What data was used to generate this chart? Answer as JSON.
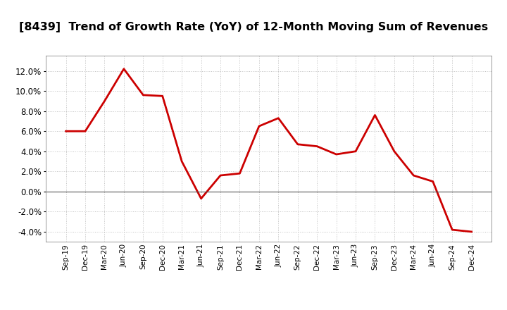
{
  "title": "[8439]  Trend of Growth Rate (YoY) of 12-Month Moving Sum of Revenues",
  "x_labels": [
    "Sep-19",
    "Dec-19",
    "Mar-20",
    "Jun-20",
    "Sep-20",
    "Dec-20",
    "Mar-21",
    "Jun-21",
    "Sep-21",
    "Dec-21",
    "Mar-22",
    "Jun-22",
    "Sep-22",
    "Dec-22",
    "Mar-23",
    "Jun-23",
    "Sep-23",
    "Dec-23",
    "Mar-24",
    "Jun-24",
    "Sep-24",
    "Dec-24"
  ],
  "y_values": [
    0.06,
    0.06,
    0.09,
    0.122,
    0.096,
    0.095,
    0.03,
    -0.007,
    0.016,
    0.018,
    0.065,
    0.073,
    0.047,
    0.045,
    0.037,
    0.04,
    0.076,
    0.04,
    0.016,
    0.01,
    -0.038,
    -0.04
  ],
  "line_color": "#cc0000",
  "line_width": 2.0,
  "ylim": [
    -0.05,
    0.135
  ],
  "yticks": [
    -0.04,
    -0.02,
    0.0,
    0.02,
    0.04,
    0.06,
    0.08,
    0.1,
    0.12
  ],
  "background_color": "#ffffff",
  "plot_bg_color": "#ffffff",
  "grid_color": "#999999",
  "title_fontsize": 11.5,
  "zero_line_color": "#555555"
}
